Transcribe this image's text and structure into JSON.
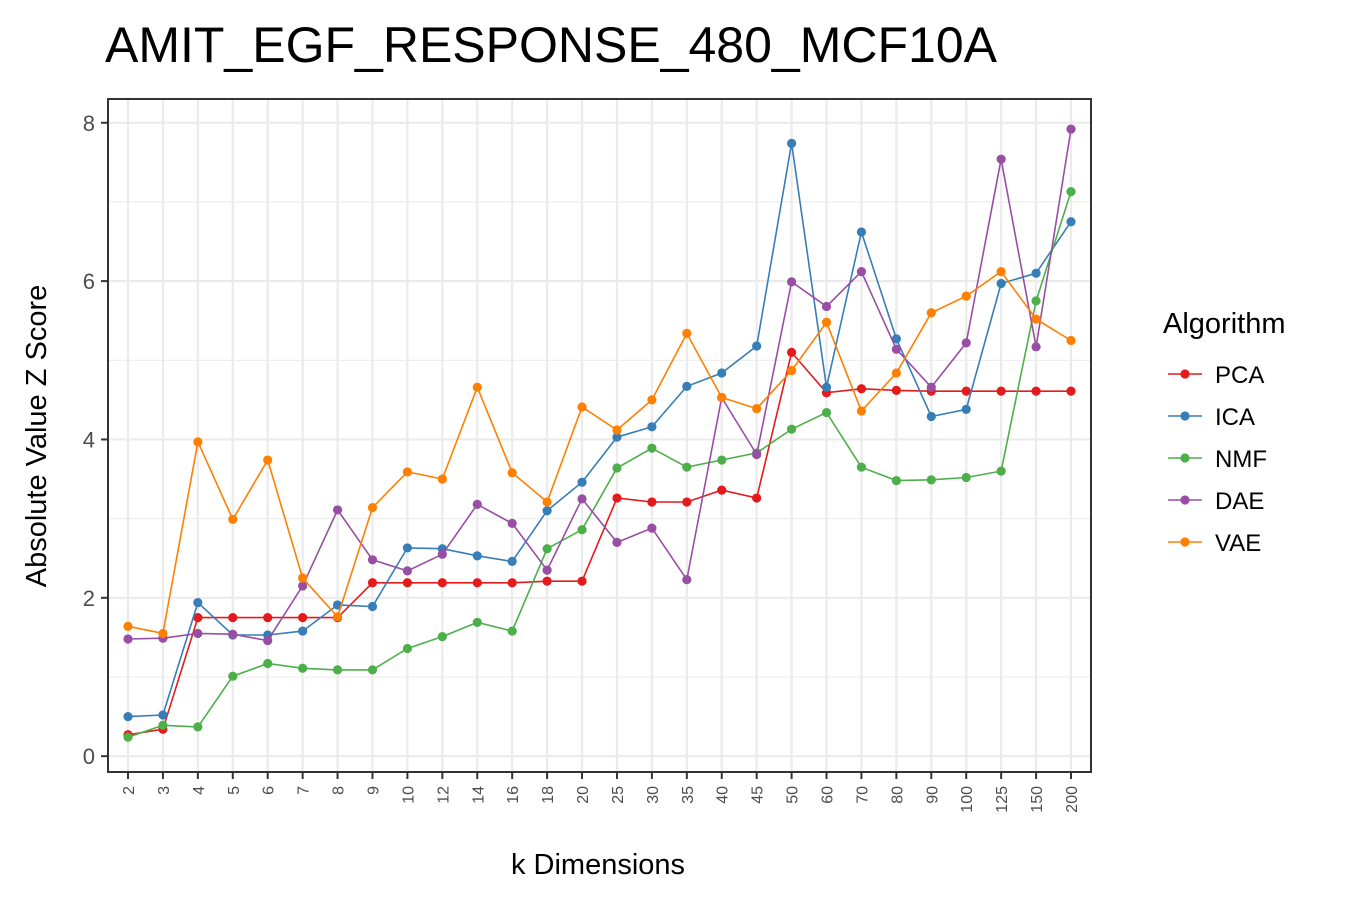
{
  "chart_data": {
    "type": "line",
    "title": "AMIT_EGF_RESPONSE_480_MCF10A",
    "xlabel": "k Dimensions",
    "ylabel": "Absolute Value Z Score",
    "categories": [
      "2",
      "3",
      "4",
      "5",
      "6",
      "7",
      "8",
      "9",
      "10",
      "12",
      "14",
      "16",
      "18",
      "20",
      "25",
      "30",
      "35",
      "40",
      "45",
      "50",
      "60",
      "70",
      "80",
      "90",
      "100",
      "125",
      "150",
      "200"
    ],
    "ylim": [
      -0.2,
      8.3
    ],
    "yticks": [
      0,
      2,
      4,
      6,
      8
    ],
    "grid": true,
    "legend_title": "Algorithm",
    "legend_position": "right",
    "series": [
      {
        "name": "PCA",
        "color": "#e41a1c",
        "values": [
          0.27,
          0.34,
          1.75,
          1.75,
          1.75,
          1.75,
          1.75,
          2.19,
          2.19,
          2.19,
          2.19,
          2.19,
          2.21,
          2.21,
          3.26,
          3.21,
          3.21,
          3.36,
          3.26,
          5.1,
          4.59,
          4.64,
          4.62,
          4.61,
          4.61,
          4.61,
          4.61,
          4.61
        ]
      },
      {
        "name": "ICA",
        "color": "#377eb8",
        "values": [
          0.5,
          0.52,
          1.94,
          1.53,
          1.53,
          1.58,
          1.91,
          1.89,
          2.63,
          2.62,
          2.53,
          2.46,
          3.1,
          3.46,
          4.03,
          4.16,
          4.67,
          4.84,
          5.18,
          7.74,
          4.66,
          6.62,
          5.27,
          4.29,
          4.38,
          5.97,
          6.1,
          6.75
        ]
      },
      {
        "name": "NMF",
        "color": "#4daf4a",
        "values": [
          0.24,
          0.39,
          0.37,
          1.01,
          1.17,
          1.11,
          1.09,
          1.09,
          1.36,
          1.51,
          1.69,
          1.58,
          2.62,
          2.86,
          3.64,
          3.89,
          3.65,
          3.74,
          3.83,
          4.13,
          4.34,
          3.65,
          3.48,
          3.49,
          3.52,
          3.6,
          5.75,
          7.13
        ]
      },
      {
        "name": "DAE",
        "color": "#984ea3",
        "values": [
          1.48,
          1.49,
          1.55,
          1.54,
          1.46,
          2.15,
          3.11,
          2.48,
          2.34,
          2.55,
          3.18,
          2.94,
          2.35,
          3.25,
          2.7,
          2.88,
          2.23,
          4.53,
          3.81,
          5.99,
          5.68,
          6.12,
          5.14,
          4.66,
          5.22,
          7.54,
          5.17,
          7.92
        ]
      },
      {
        "name": "VAE",
        "color": "#ff7f00",
        "values": [
          1.64,
          1.55,
          3.97,
          2.99,
          3.74,
          2.25,
          1.76,
          3.14,
          3.59,
          3.5,
          4.66,
          3.58,
          3.21,
          4.41,
          4.12,
          4.5,
          5.34,
          4.53,
          4.39,
          4.87,
          5.48,
          4.36,
          4.84,
          5.6,
          5.81,
          6.12,
          5.52,
          5.25
        ]
      }
    ]
  }
}
